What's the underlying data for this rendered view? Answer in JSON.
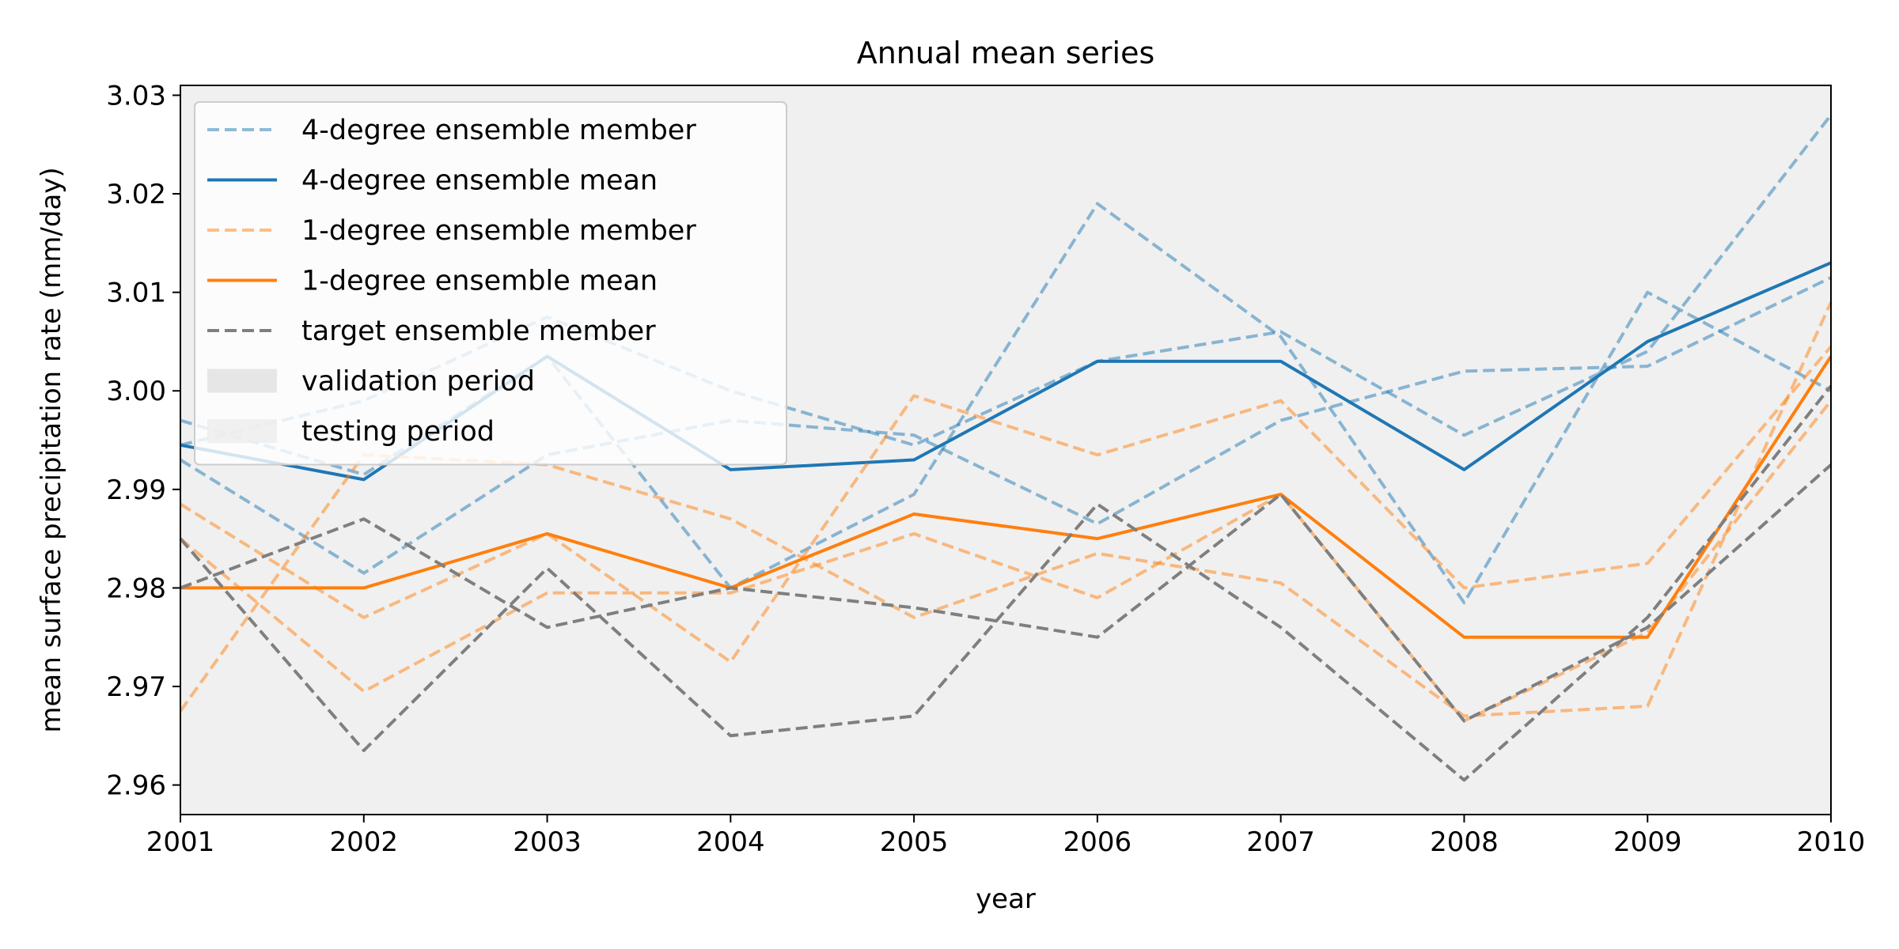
{
  "chart_data": {
    "type": "line",
    "title": "Annual mean series",
    "xlabel": "year",
    "ylabel": "mean surface precipitation rate (mm/day)",
    "xlim": [
      2001,
      2010
    ],
    "ylim": [
      2.957,
      3.031
    ],
    "x": [
      2001,
      2002,
      2003,
      2004,
      2005,
      2006,
      2007,
      2008,
      2009,
      2010
    ],
    "xticks": [
      "2001",
      "2002",
      "2003",
      "2004",
      "2005",
      "2006",
      "2007",
      "2008",
      "2009",
      "2010"
    ],
    "yticks": [
      2.96,
      2.97,
      2.98,
      2.99,
      3.0,
      3.01,
      3.02,
      3.03
    ],
    "ytick_labels": [
      "2.96",
      "2.97",
      "2.98",
      "2.99",
      "3.00",
      "3.01",
      "3.02",
      "3.03"
    ],
    "grid": false,
    "legend_position": "upper-left",
    "legend": [
      {
        "label": "4-degree ensemble member",
        "kind": "dashed",
        "color": "#1f77b4",
        "alpha": 0.5
      },
      {
        "label": "4-degree ensemble mean",
        "kind": "solid",
        "color": "#1f77b4",
        "alpha": 1.0
      },
      {
        "label": "1-degree ensemble member",
        "kind": "dashed",
        "color": "#ff7f0e",
        "alpha": 0.5
      },
      {
        "label": "1-degree ensemble mean",
        "kind": "solid",
        "color": "#ff7f0e",
        "alpha": 1.0
      },
      {
        "label": "target ensemble member",
        "kind": "dashed",
        "color": "#7f7f7f",
        "alpha": 1.0
      },
      {
        "label": "validation period",
        "kind": "patch",
        "color": "#e0e0e0",
        "alpha": 0.8
      },
      {
        "label": "testing period",
        "kind": "patch",
        "color": "#ececec",
        "alpha": 0.8
      }
    ],
    "series": [
      {
        "group": "4-degree ensemble member",
        "color": "#1f77b4",
        "style": "dashed",
        "alpha": 0.5,
        "values": [
          2.997,
          2.9915,
          3.0035,
          2.98,
          2.9895,
          3.019,
          3.0055,
          2.9785,
          3.01,
          3.0
        ]
      },
      {
        "group": "4-degree ensemble member",
        "color": "#1f77b4",
        "style": "dashed",
        "alpha": 0.5,
        "values": [
          2.993,
          2.9815,
          2.9935,
          2.997,
          2.9955,
          2.9865,
          2.997,
          3.002,
          3.0025,
          3.0115
        ]
      },
      {
        "group": "4-degree ensemble member",
        "color": "#1f77b4",
        "style": "dashed",
        "alpha": 0.5,
        "values": [
          2.9945,
          2.999,
          3.0075,
          3.0,
          2.9945,
          3.003,
          3.006,
          2.9955,
          3.004,
          3.028
        ]
      },
      {
        "group": "4-degree ensemble mean",
        "color": "#1f77b4",
        "style": "solid",
        "alpha": 1.0,
        "values": [
          2.9945,
          2.991,
          3.0035,
          2.992,
          2.993,
          3.003,
          3.003,
          2.992,
          3.005,
          3.013
        ]
      },
      {
        "group": "1-degree ensemble member",
        "color": "#ff7f0e",
        "style": "dashed",
        "alpha": 0.5,
        "values": [
          2.9675,
          2.9935,
          2.9925,
          2.987,
          2.977,
          2.9835,
          2.9805,
          2.967,
          2.968,
          3.009
        ]
      },
      {
        "group": "1-degree ensemble member",
        "color": "#ff7f0e",
        "style": "dashed",
        "alpha": 0.5,
        "values": [
          2.985,
          2.9695,
          2.9795,
          2.9795,
          2.9855,
          2.979,
          2.9895,
          2.9665,
          2.9755,
          2.999
        ]
      },
      {
        "group": "1-degree ensemble member",
        "color": "#ff7f0e",
        "style": "dashed",
        "alpha": 0.5,
        "values": [
          2.9885,
          2.977,
          2.9855,
          2.9725,
          2.9995,
          2.9935,
          2.999,
          2.98,
          2.9825,
          3.0045
        ]
      },
      {
        "group": "1-degree ensemble mean",
        "color": "#ff7f0e",
        "style": "solid",
        "alpha": 1.0,
        "values": [
          2.98,
          2.98,
          2.9855,
          2.98,
          2.9875,
          2.985,
          2.9895,
          2.975,
          2.975,
          3.0035
        ]
      },
      {
        "group": "target ensemble member",
        "color": "#7f7f7f",
        "style": "dashed",
        "alpha": 1.0,
        "values": [
          2.985,
          2.9635,
          2.982,
          2.965,
          2.967,
          2.9885,
          2.976,
          2.9605,
          2.977,
          3.0005
        ]
      },
      {
        "group": "target ensemble member",
        "color": "#7f7f7f",
        "style": "dashed",
        "alpha": 1.0,
        "values": [
          2.98,
          2.987,
          2.976,
          2.98,
          2.978,
          2.975,
          2.9895,
          2.9665,
          2.976,
          2.9925
        ]
      }
    ],
    "background_color": "#f0f0f0"
  }
}
